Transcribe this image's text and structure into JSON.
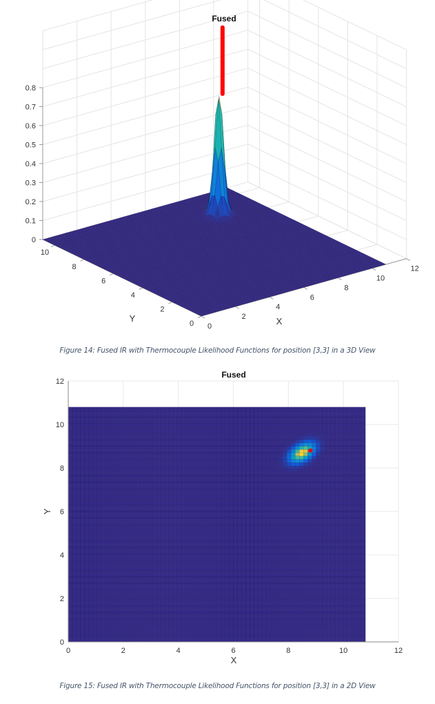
{
  "chart_data": [
    {
      "type": "surface",
      "title": "Fused",
      "xlabel": "X",
      "ylabel": "Y",
      "zlabel": "",
      "xlim": [
        0,
        12
      ],
      "ylim": [
        0,
        10.8
      ],
      "zlim": [
        0,
        0.8
      ],
      "xticks": [
        "0",
        "2",
        "4",
        "6",
        "8",
        "10",
        "12"
      ],
      "yticks": [
        "0",
        "2",
        "4",
        "6",
        "8",
        "10"
      ],
      "zticks": [
        "0",
        "0.1",
        "0.2",
        "0.3",
        "0.4",
        "0.5",
        "0.6",
        "0.7",
        "0.8"
      ],
      "surface_extent": [
        0,
        10.8
      ],
      "peak": {
        "x": 8.5,
        "y": 8.7,
        "z": 0.67
      },
      "marker": {
        "x": 8.8,
        "y": 8.8,
        "z_from": 0,
        "z_to": 0.97,
        "color": "#ff0000"
      },
      "grid": true,
      "colormap": "parula",
      "caption": "Figure 14: Fused IR with Thermocouple Likelihood Functions for position [3,3] in a 3D View"
    },
    {
      "type": "heatmap",
      "title": "Fused",
      "xlabel": "X",
      "ylabel": "Y",
      "xlim": [
        0,
        12
      ],
      "ylim": [
        0,
        12
      ],
      "xticks": [
        "0",
        "2",
        "4",
        "6",
        "8",
        "10",
        "12"
      ],
      "yticks": [
        "0",
        "2",
        "4",
        "6",
        "8",
        "10",
        "12"
      ],
      "surface_extent": [
        0,
        10.8
      ],
      "peak": {
        "x": 8.5,
        "y": 8.7,
        "z": 0.67
      },
      "marker": {
        "x": 8.8,
        "y": 8.8,
        "color": "#ff0000"
      },
      "grid": true,
      "colormap": "parula",
      "caption": "Figure 15: Fused IR with Thermocouple Likelihood Functions for position [3,3] in a 2D View"
    }
  ]
}
